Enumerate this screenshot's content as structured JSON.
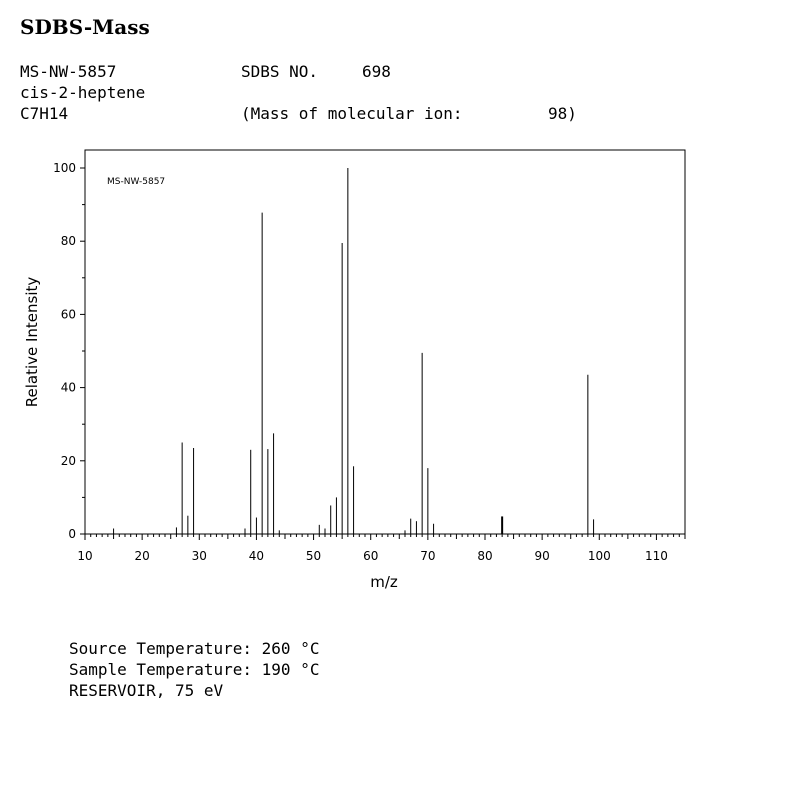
{
  "header": {
    "title": "SDBS-Mass",
    "ms_id": "MS-NW-5857",
    "sdbs_label": "SDBS NO.",
    "sdbs_no": "698",
    "compound": "cis-2-heptene",
    "formula": "C7H14",
    "molecular_ion_label": "(Mass of molecular ion:",
    "molecular_ion_value": "98)"
  },
  "conditions": {
    "source_temp": "Source Temperature: 260 °C",
    "sample_temp": "Sample Temperature: 190 °C",
    "reservoir": "RESERVOIR, 75 eV"
  },
  "chart_data": {
    "type": "bar",
    "title": "",
    "annotation": "MS-NW-5857",
    "xlabel": "m/z",
    "ylabel": "Relative Intensity",
    "xlim": [
      10,
      115
    ],
    "ylim": [
      0,
      100
    ],
    "x_ticks": [
      10,
      20,
      30,
      40,
      50,
      60,
      70,
      80,
      90,
      100,
      110
    ],
    "y_ticks": [
      0,
      20,
      40,
      60,
      80,
      100
    ],
    "grid": false,
    "peaks": [
      {
        "mz": 15,
        "intensity": 1.5
      },
      {
        "mz": 26,
        "intensity": 1.8
      },
      {
        "mz": 27,
        "intensity": 25.0
      },
      {
        "mz": 28,
        "intensity": 5.0
      },
      {
        "mz": 29,
        "intensity": 23.5
      },
      {
        "mz": 38,
        "intensity": 1.5
      },
      {
        "mz": 39,
        "intensity": 23.0
      },
      {
        "mz": 40,
        "intensity": 4.5
      },
      {
        "mz": 41,
        "intensity": 87.8
      },
      {
        "mz": 42,
        "intensity": 23.2
      },
      {
        "mz": 43,
        "intensity": 27.5
      },
      {
        "mz": 44,
        "intensity": 1.0
      },
      {
        "mz": 51,
        "intensity": 2.5
      },
      {
        "mz": 52,
        "intensity": 1.5
      },
      {
        "mz": 53,
        "intensity": 7.8
      },
      {
        "mz": 54,
        "intensity": 10.0
      },
      {
        "mz": 55,
        "intensity": 79.5
      },
      {
        "mz": 56,
        "intensity": 100.0
      },
      {
        "mz": 57,
        "intensity": 18.5
      },
      {
        "mz": 66,
        "intensity": 1.0
      },
      {
        "mz": 67,
        "intensity": 4.2
      },
      {
        "mz": 68,
        "intensity": 3.5
      },
      {
        "mz": 69,
        "intensity": 49.5
      },
      {
        "mz": 70,
        "intensity": 18.0
      },
      {
        "mz": 71,
        "intensity": 2.8
      },
      {
        "mz": 83,
        "intensity": 4.8
      },
      {
        "mz": 98,
        "intensity": 43.5
      },
      {
        "mz": 99,
        "intensity": 4.0
      }
    ]
  }
}
